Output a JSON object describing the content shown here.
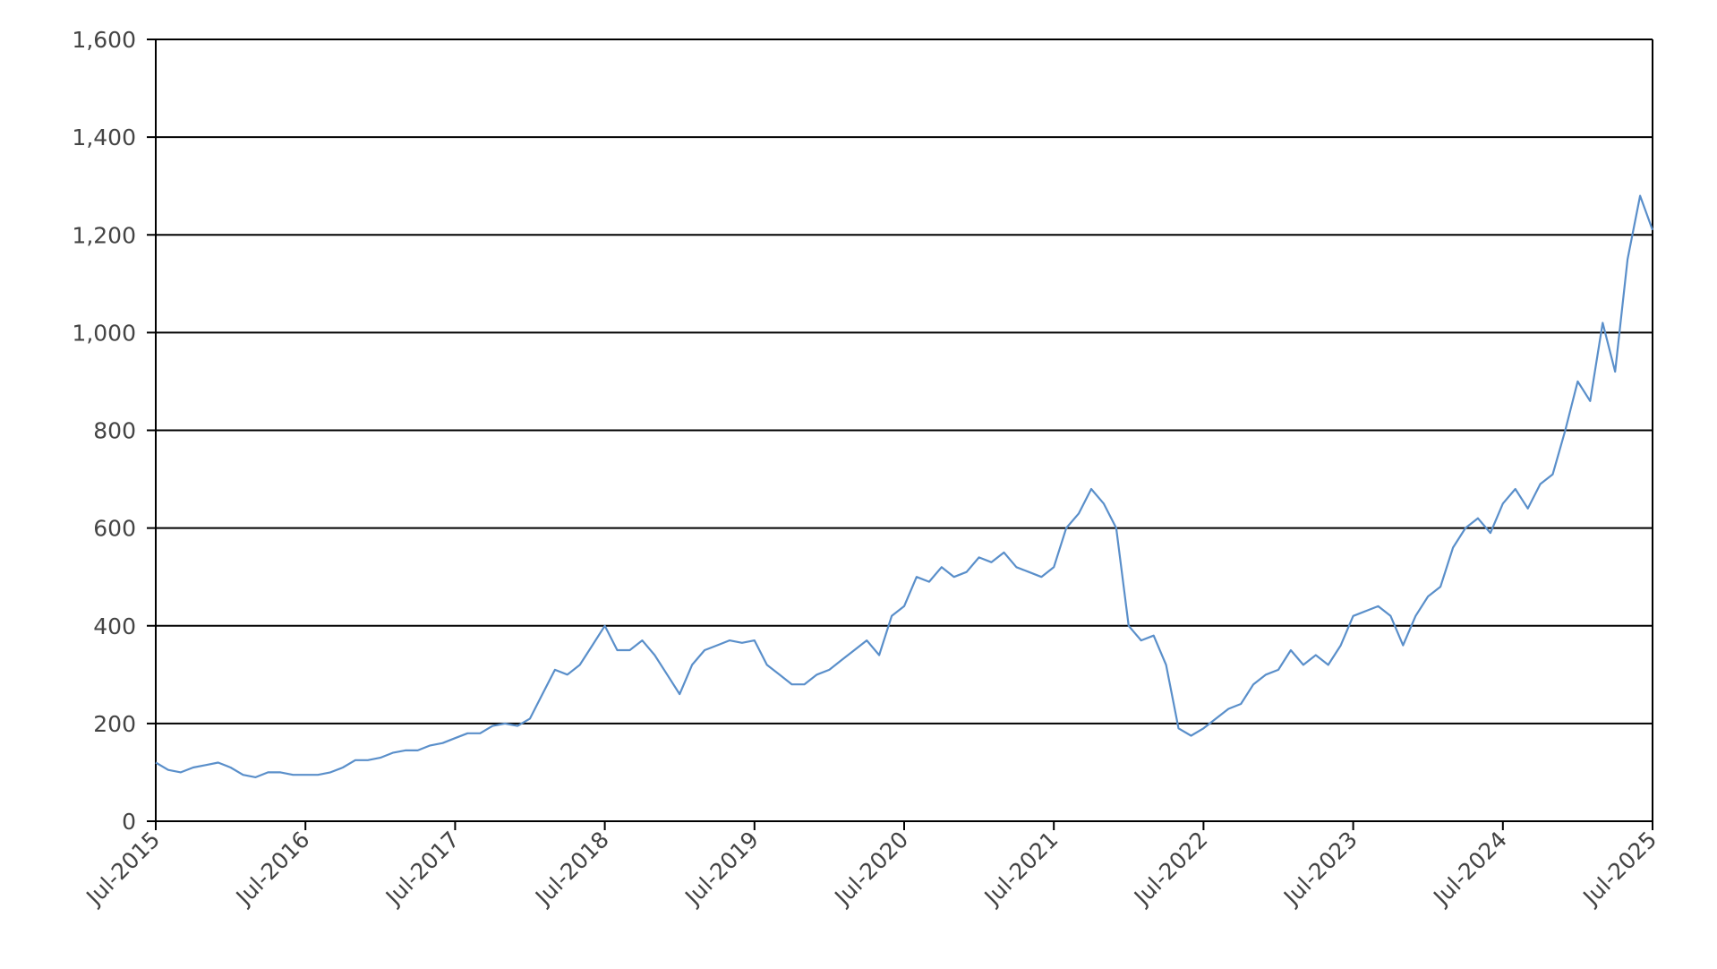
{
  "chart_data": {
    "type": "line",
    "x": [
      "2015-07",
      "2015-08",
      "2015-09",
      "2015-10",
      "2015-11",
      "2015-12",
      "2016-01",
      "2016-02",
      "2016-03",
      "2016-04",
      "2016-05",
      "2016-06",
      "2016-07",
      "2016-08",
      "2016-09",
      "2016-10",
      "2016-11",
      "2016-12",
      "2017-01",
      "2017-02",
      "2017-03",
      "2017-04",
      "2017-05",
      "2017-06",
      "2017-07",
      "2017-08",
      "2017-09",
      "2017-10",
      "2017-11",
      "2017-12",
      "2018-01",
      "2018-02",
      "2018-03",
      "2018-04",
      "2018-05",
      "2018-06",
      "2018-07",
      "2018-08",
      "2018-09",
      "2018-10",
      "2018-11",
      "2018-12",
      "2019-01",
      "2019-02",
      "2019-03",
      "2019-04",
      "2019-05",
      "2019-06",
      "2019-07",
      "2019-08",
      "2019-09",
      "2019-10",
      "2019-11",
      "2019-12",
      "2020-01",
      "2020-02",
      "2020-03",
      "2020-04",
      "2020-05",
      "2020-06",
      "2020-07",
      "2020-08",
      "2020-09",
      "2020-10",
      "2020-11",
      "2020-12",
      "2021-01",
      "2021-02",
      "2021-03",
      "2021-04",
      "2021-05",
      "2021-06",
      "2021-07",
      "2021-08",
      "2021-09",
      "2021-10",
      "2021-11",
      "2021-12",
      "2022-01",
      "2022-02",
      "2022-03",
      "2022-04",
      "2022-05",
      "2022-06",
      "2022-07",
      "2022-08",
      "2022-09",
      "2022-10",
      "2022-11",
      "2022-12",
      "2023-01",
      "2023-02",
      "2023-03",
      "2023-04",
      "2023-05",
      "2023-06",
      "2023-07",
      "2023-08",
      "2023-09",
      "2023-10",
      "2023-11",
      "2023-12",
      "2024-01",
      "2024-02",
      "2024-03",
      "2024-04",
      "2024-05",
      "2024-06",
      "2024-07",
      "2024-08",
      "2024-09",
      "2024-10",
      "2024-11",
      "2024-12",
      "2025-01",
      "2025-02",
      "2025-03",
      "2025-04",
      "2025-05",
      "2025-06",
      "2025-07"
    ],
    "series": [
      {
        "color": "#5a8fca",
        "values": [
          120,
          105,
          100,
          110,
          115,
          120,
          110,
          95,
          90,
          100,
          100,
          95,
          95,
          95,
          100,
          110,
          125,
          125,
          130,
          140,
          145,
          145,
          155,
          160,
          170,
          180,
          180,
          195,
          200,
          195,
          210,
          260,
          310,
          300,
          320,
          360,
          400,
          350,
          350,
          370,
          340,
          300,
          260,
          320,
          350,
          360,
          370,
          365,
          370,
          320,
          300,
          280,
          280,
          300,
          310,
          330,
          350,
          370,
          340,
          420,
          440,
          500,
          490,
          520,
          500,
          510,
          540,
          530,
          550,
          520,
          510,
          500,
          520,
          600,
          630,
          680,
          650,
          600,
          400,
          370,
          380,
          320,
          190,
          175,
          190,
          210,
          230,
          240,
          280,
          300,
          310,
          350,
          320,
          340,
          320,
          360,
          420,
          430,
          440,
          420,
          360,
          420,
          460,
          480,
          560,
          600,
          620,
          590,
          650,
          680,
          640,
          690,
          710,
          800,
          900,
          860,
          1020,
          920,
          1150,
          1280,
          1210
        ]
      }
    ],
    "ylim": [
      0,
      1600
    ],
    "yticks": [
      0,
      200,
      400,
      600,
      800,
      {
        "value": 1000,
        "label": "1,000"
      },
      {
        "value": 1200,
        "label": "1,200"
      },
      {
        "value": 1400,
        "label": "1,400"
      },
      {
        "value": 1600,
        "label": "1,600"
      }
    ],
    "xlim": [
      "2015-07",
      "2025-07"
    ],
    "xticks": [
      {
        "value": "2015-07",
        "label": "Jul-2015"
      },
      {
        "value": "2016-07",
        "label": "Jul-2016"
      },
      {
        "value": "2017-07",
        "label": "Jul-2017"
      },
      {
        "value": "2018-07",
        "label": "Jul-2018"
      },
      {
        "value": "2019-07",
        "label": "Jul-2019"
      },
      {
        "value": "2020-07",
        "label": "Jul-2020"
      },
      {
        "value": "2021-07",
        "label": "Jul-2021"
      },
      {
        "value": "2022-07",
        "label": "Jul-2022"
      },
      {
        "value": "2023-07",
        "label": "Jul-2023"
      },
      {
        "value": "2024-07",
        "label": "Jul-2024"
      },
      {
        "value": "2025-07",
        "label": "Jul-2025"
      }
    ],
    "grid": true
  }
}
